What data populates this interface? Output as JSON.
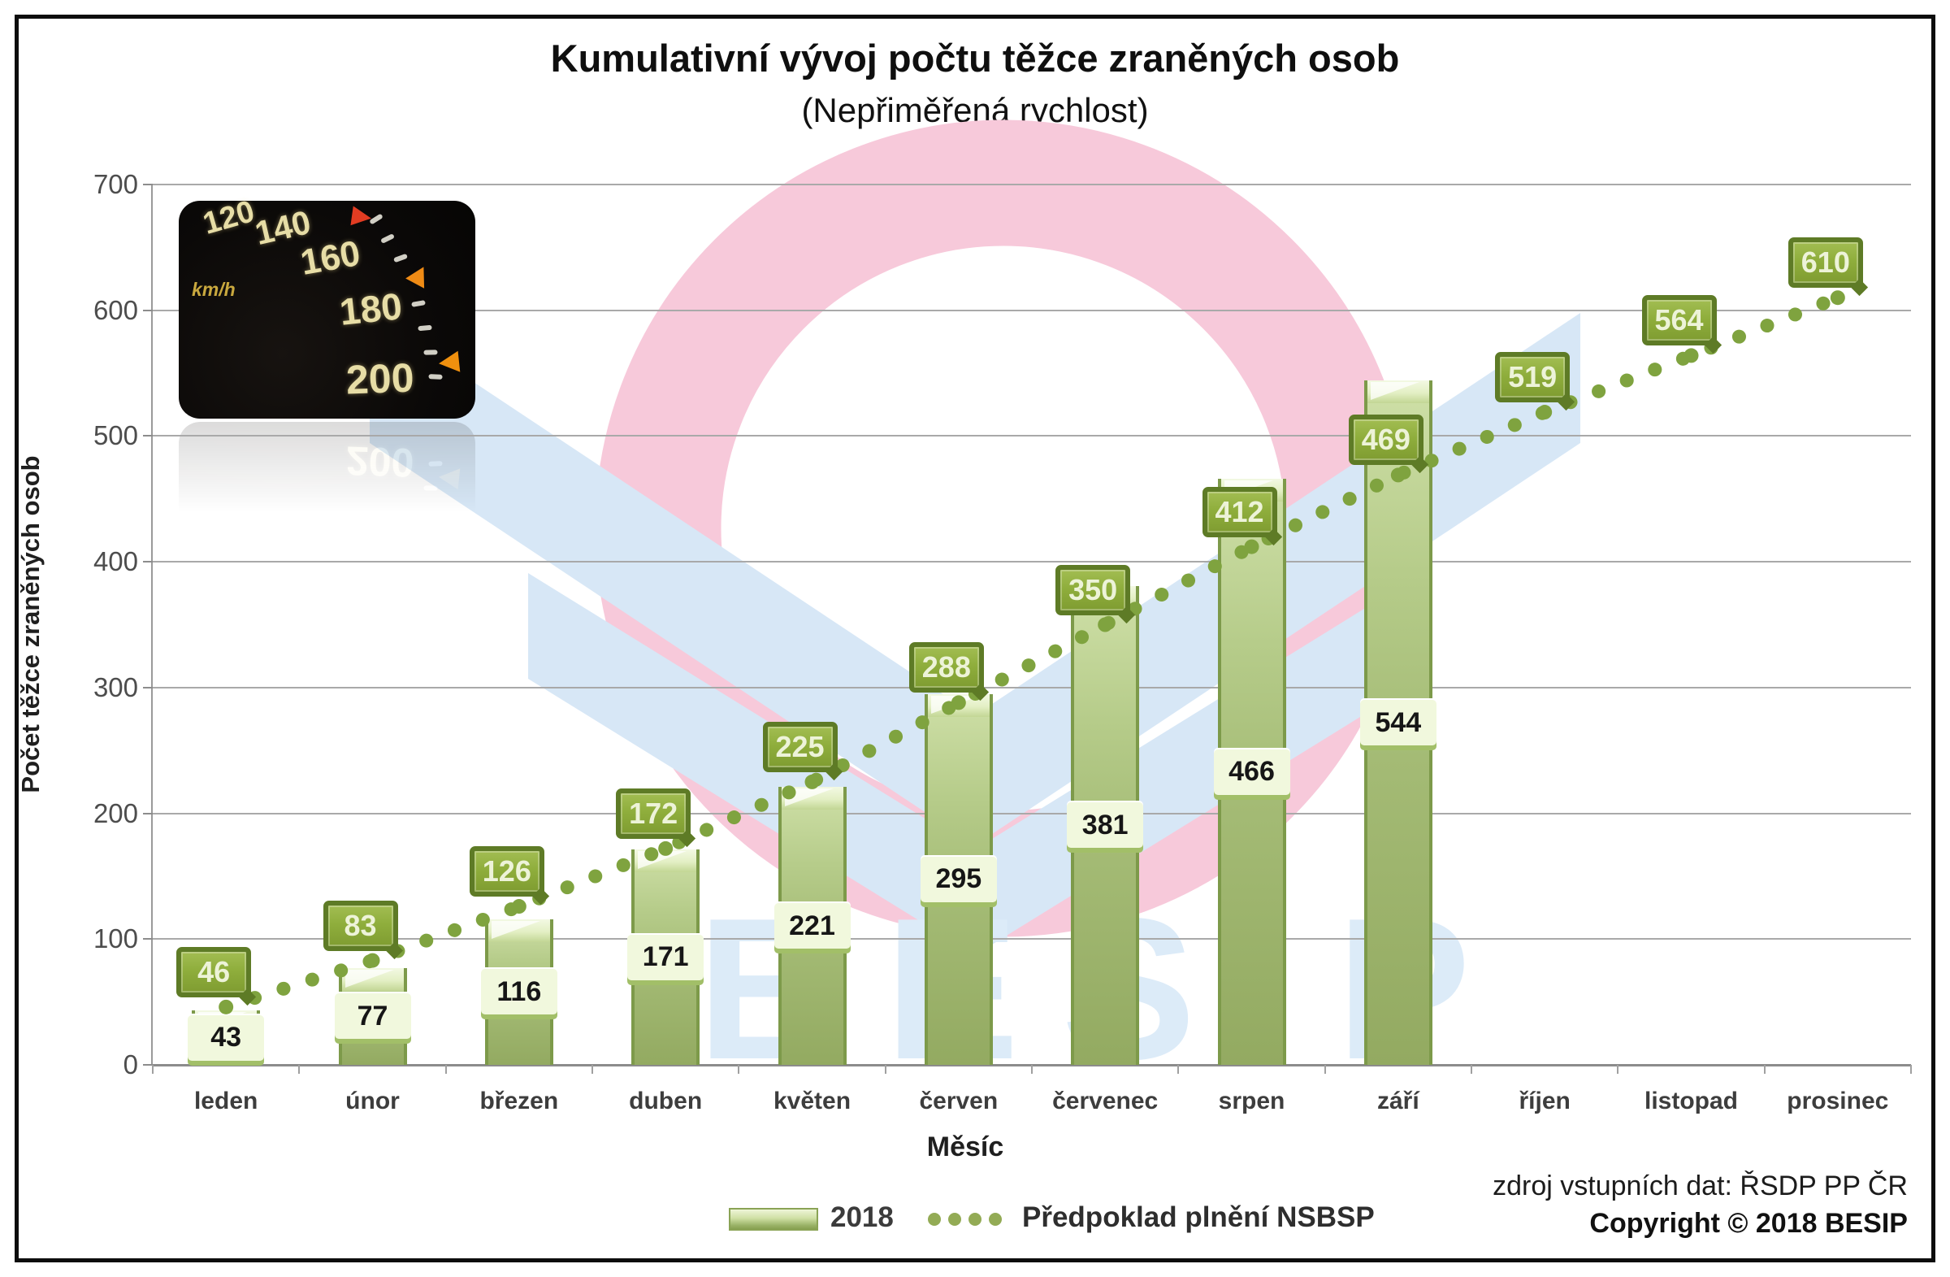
{
  "header": {
    "title": "Kumulativní vývoj počtu těžce zraněných osob",
    "subtitle": "(Nepřiměřená rychlost)"
  },
  "watermark": {
    "text": "BESIP"
  },
  "speedometer": {
    "labels": [
      "120",
      "140",
      "160",
      "180",
      "200"
    ],
    "unit": "km/h"
  },
  "legend": {
    "items": [
      {
        "label": "2018",
        "type": "bar"
      },
      {
        "label": "Předpoklad plnění NSBSP",
        "type": "dots"
      }
    ]
  },
  "footer": {
    "source": "zdroj vstupních dat: ŘSDP PP ČR",
    "copyright": "Copyright © 2018 BESIP"
  },
  "colors": {
    "bar_fill": "#aec380",
    "bar_edge": "#7d9a4a",
    "bar_label_box": "#f1f8dd",
    "callout_fill": "#8fae3c",
    "callout_border": "#5e7b26",
    "dot_line": "#7fa33f",
    "watermark_pink": "#f7c9da",
    "watermark_blue": "#d7e7f6",
    "watermark_text_blue": "#dcebf8",
    "gridline": "#a9a9a9"
  },
  "chart_data": {
    "type": "bar",
    "title": "Kumulativní vývoj počtu těžce zraněných osob",
    "subtitle": "(Nepřiměřená rychlost)",
    "xlabel": "Měsíc",
    "ylabel": "Počet těžce zraněných osob",
    "ylim": [
      0,
      700
    ],
    "ytick_step": 100,
    "grid": true,
    "legend_position": "bottom",
    "categories": [
      "leden",
      "únor",
      "březen",
      "duben",
      "květen",
      "červen",
      "červenec",
      "srpen",
      "září",
      "říjen",
      "listopad",
      "prosinec"
    ],
    "series": [
      {
        "name": "2018",
        "type": "bar",
        "values": [
          43,
          77,
          116,
          171,
          221,
          295,
          381,
          466,
          544,
          null,
          null,
          null
        ]
      },
      {
        "name": "Předpoklad plnění NSBSP",
        "type": "dotted-line",
        "values": [
          46,
          83,
          126,
          172,
          225,
          288,
          350,
          412,
          469,
          519,
          564,
          610
        ]
      }
    ]
  }
}
